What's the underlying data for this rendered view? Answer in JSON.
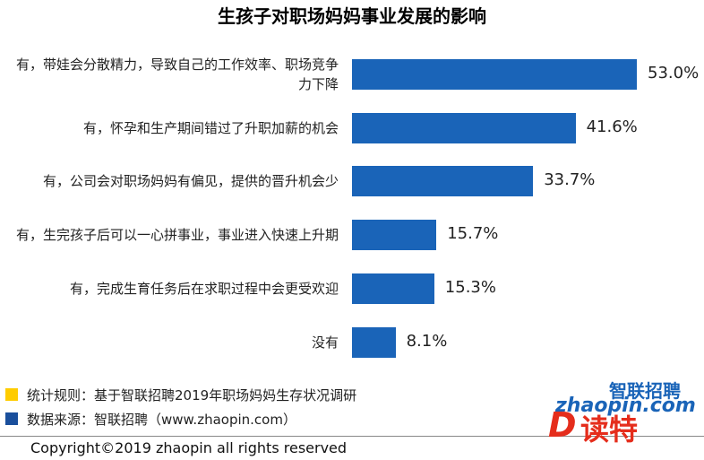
{
  "chart_data": {
    "type": "bar",
    "orientation": "horizontal",
    "title": "生孩子对职场妈妈事业发展的影响",
    "categories": [
      "有，带娃会分散精力，导致自己的工作效率、职场竞争力下降",
      "有，怀孕和生产期间错过了升职加薪的机会",
      "有，公司会对职场妈妈有偏见，提供的晋升机会少",
      "有，生完孩子后可以一心拼事业，事业进入快速上升期",
      "有，完成生育任务后在求职过程中会更受欢迎",
      "没有"
    ],
    "values": [
      53.0,
      41.6,
      33.7,
      15.7,
      15.3,
      8.1
    ],
    "value_labels": [
      "53.0%",
      "41.6%",
      "33.7%",
      "15.7%",
      "15.3%",
      "8.1%"
    ],
    "color": "#1a64b8"
  },
  "notes": [
    {
      "text": "统计规则：基于智联招聘2019年职场妈妈生存状况调研",
      "color": "#ffcc00"
    },
    {
      "text": "数据来源：智联招聘（www.zhaopin.com）",
      "color": "#1a4f9c"
    }
  ],
  "footer": {
    "copyright": "Copyright©2019 zhaopin all rights reserved"
  },
  "logos": {
    "zhaopin_cn": "智联招聘",
    "zhaopin_en": "zhaopin.com",
    "dute": "读特"
  }
}
